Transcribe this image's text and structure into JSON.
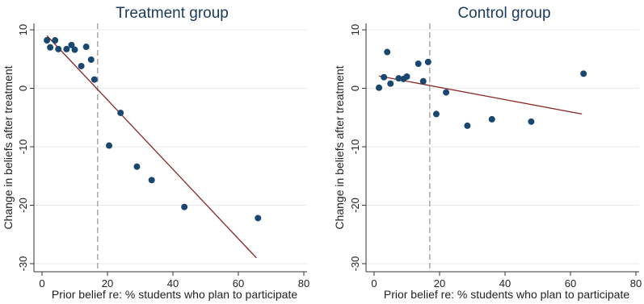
{
  "chart_data": [
    {
      "type": "scatter",
      "title": "Treatment group",
      "xlabel": "Prior belief re: % students who plan to participate",
      "ylabel": "Change in beliefs after treatment",
      "xlim": [
        0,
        80
      ],
      "ylim": [
        -30,
        10
      ],
      "xticks": [
        0,
        20,
        40,
        60,
        80
      ],
      "yticks": [
        -30,
        -20,
        -10,
        0,
        10
      ],
      "grid": true,
      "reference_line_x": 17,
      "fit_line": {
        "x": [
          1.5,
          65.5
        ],
        "y": [
          9.0,
          -29.0
        ]
      },
      "series": [
        {
          "x": [
            1.5,
            2.5,
            4,
            5,
            7.5,
            9,
            10,
            12,
            13.5,
            15,
            16,
            24,
            20.5,
            29,
            33.5,
            43.5,
            66
          ],
          "y": [
            8.2,
            7.0,
            8.2,
            6.7,
            6.7,
            7.4,
            6.6,
            3.8,
            7.1,
            4.9,
            1.5,
            -4.2,
            -9.8,
            -13.4,
            -15.7,
            -20.3,
            -22.2
          ]
        }
      ]
    },
    {
      "type": "scatter",
      "title": "Control group",
      "xlabel": "Prior belief re: % students who plan to participate",
      "ylabel": "Change in beliefs after treatment",
      "xlim": [
        0,
        80
      ],
      "ylim": [
        -30,
        10
      ],
      "xticks": [
        0,
        20,
        40,
        60,
        80
      ],
      "yticks": [
        -30,
        -20,
        -10,
        0,
        10
      ],
      "grid": true,
      "reference_line_x": 17,
      "fit_line": {
        "x": [
          1.5,
          63.5
        ],
        "y": [
          2.1,
          -4.4
        ]
      },
      "series": [
        {
          "x": [
            1.5,
            3,
            4,
            5,
            7.5,
            9,
            10,
            13.5,
            15,
            16.5,
            19,
            22,
            28.5,
            36,
            48,
            64
          ],
          "y": [
            0.1,
            1.9,
            6.2,
            0.8,
            1.7,
            1.6,
            2.0,
            4.2,
            1.2,
            4.5,
            -4.4,
            -0.7,
            -6.4,
            -5.3,
            -5.7,
            2.5
          ]
        }
      ]
    }
  ]
}
